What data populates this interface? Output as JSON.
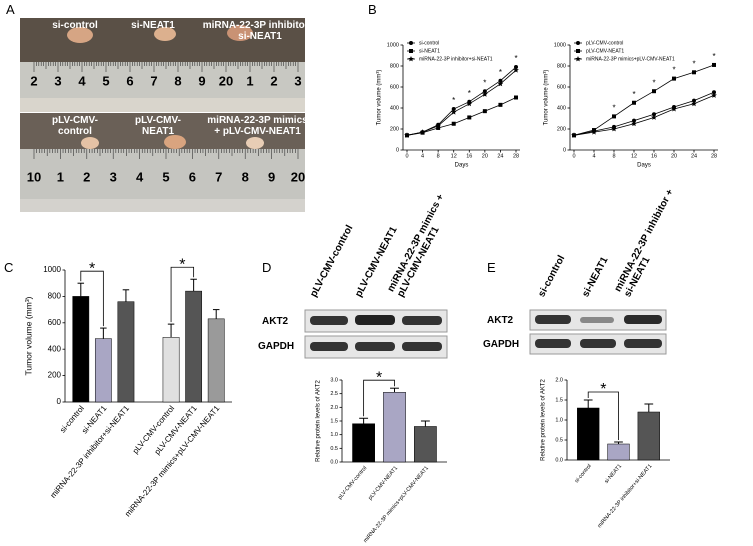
{
  "panel_labels": [
    "A",
    "B",
    "C",
    "D",
    "E"
  ],
  "panel_a": {
    "top": {
      "labels": [
        "si-control",
        "si-NEAT1",
        "miRNA-22-3P inhibitor + si-NEAT1"
      ],
      "ruler": [
        "2",
        "3",
        "4",
        "5",
        "6",
        "7",
        "8",
        "9",
        "20",
        "1",
        "2",
        "3"
      ]
    },
    "bottom": {
      "labels": [
        "pLV-CMV-control",
        "pLV-CMV-NEAT1",
        "miRNA-22-3P mimics + pLV-CMV-NEAT1"
      ],
      "ruler": [
        "10",
        "1",
        "2",
        "3",
        "4",
        "5",
        "6",
        "7",
        "8",
        "9",
        "20"
      ]
    }
  },
  "panel_d_blot": {
    "lanes": [
      "pLV-CMV-control",
      "pLV-CMV-NEAT1",
      "miRNA-22-3P mimics + pLV-CMV-NEAT1"
    ],
    "rows": [
      "AKT2",
      "GAPDH"
    ]
  },
  "panel_e_blot": {
    "lanes": [
      "si-control",
      "si-NEAT1",
      "miRNA-22-3P inhibitor + si-NEAT1"
    ],
    "rows": [
      "AKT2",
      "GAPDH"
    ]
  },
  "chart_data": [
    {
      "type": "line",
      "x_label": "Days",
      "y_label": "Tumor volume (mm³)",
      "x": [
        0,
        4,
        8,
        12,
        16,
        20,
        24,
        28
      ],
      "xlim": [
        0,
        28
      ],
      "xticks": [
        0,
        4,
        8,
        12,
        16,
        20,
        24,
        28
      ],
      "ylim": [
        0,
        1000
      ],
      "yticks": [
        0,
        200,
        400,
        600,
        800,
        1000
      ],
      "legend": "upper-left",
      "series": [
        {
          "name": "si-control",
          "color": "#000000",
          "marker": "circle",
          "values": [
            140,
            170,
            240,
            390,
            460,
            560,
            660,
            790
          ]
        },
        {
          "name": "si-NEAT1",
          "color": "#000000",
          "marker": "square",
          "values": [
            140,
            165,
            210,
            250,
            310,
            370,
            430,
            500
          ]
        },
        {
          "name": "miRNA-22-3P inhibitor+si-NEAT1",
          "color": "#000000",
          "marker": "star",
          "values": [
            140,
            170,
            230,
            360,
            440,
            530,
            630,
            760
          ]
        }
      ],
      "significance": {
        "x": [
          12,
          16,
          20,
          24,
          28
        ],
        "label": "*"
      }
    },
    {
      "type": "line",
      "x_label": "Days",
      "y_label": "Tumor volume (mm³)",
      "x": [
        0,
        4,
        8,
        12,
        16,
        20,
        24,
        28
      ],
      "xlim": [
        0,
        28
      ],
      "xticks": [
        0,
        4,
        8,
        12,
        16,
        20,
        24,
        28
      ],
      "ylim": [
        0,
        1000
      ],
      "yticks": [
        0,
        200,
        400,
        600,
        800,
        1000
      ],
      "legend": "upper-left",
      "series": [
        {
          "name": "pLV-CMV-control",
          "color": "#000000",
          "marker": "circle",
          "values": [
            140,
            180,
            220,
            280,
            340,
            410,
            470,
            550
          ]
        },
        {
          "name": "pLV-CMV-NEAT1",
          "color": "#000000",
          "marker": "square",
          "values": [
            140,
            190,
            320,
            450,
            560,
            680,
            740,
            810
          ]
        },
        {
          "name": "miRNA-22-3P mimics+pLV-CMV-NEAT1",
          "color": "#000000",
          "marker": "star",
          "values": [
            140,
            170,
            200,
            250,
            310,
            390,
            440,
            520
          ]
        }
      ],
      "significance": {
        "x": [
          8,
          12,
          16,
          20,
          24,
          28
        ],
        "label": "*"
      }
    },
    {
      "type": "bar",
      "y_label": "Tumor volume (mm³)",
      "categories": [
        "si-control",
        "si-NEAT1",
        "miRNA-22-3P inhibitor+si-NEAT1",
        "pLV-CMV-control",
        "pLV-CMV-NEAT1",
        "miRNA-22-3P mimics+pLV-CMV-NEAT1"
      ],
      "values": [
        800,
        480,
        760,
        490,
        840,
        630
      ],
      "errors": [
        100,
        80,
        90,
        100,
        90,
        70
      ],
      "colors": [
        "#000000",
        "#a9a6c4",
        "#555555",
        "#e0e0e0",
        "#555555",
        "#9a9a9a"
      ],
      "ylim": [
        0,
        1000
      ],
      "yticks": [
        0,
        200,
        400,
        600,
        800,
        1000
      ],
      "brackets": [
        {
          "bars": [
            0,
            1
          ],
          "label": "*"
        },
        {
          "bars": [
            3,
            4
          ],
          "label": "*"
        }
      ]
    },
    {
      "type": "bar",
      "y_label": "Relative protein levels of AKT2",
      "categories": [
        "pLV-CMV-control",
        "pLV-CMV-NEAT1",
        "miRNA-22-3P mimics+pLV-CMV-NEAT1"
      ],
      "values": [
        1.4,
        2.55,
        1.3
      ],
      "errors": [
        0.2,
        0.15,
        0.2
      ],
      "colors": [
        "#000000",
        "#a9a6c4",
        "#555555"
      ],
      "ylim": [
        0,
        3
      ],
      "yticks": [
        {
          "value": 0,
          "label": "0.0"
        },
        0.5,
        {
          "value": 1,
          "label": "1.0"
        },
        1.5,
        {
          "value": 2,
          "label": "2.0"
        },
        2.5,
        {
          "value": 3,
          "label": "3.0"
        }
      ],
      "brackets": [
        {
          "bars": [
            0,
            1
          ],
          "label": "*"
        }
      ]
    },
    {
      "type": "bar",
      "y_label": "Relative protein levels of AKT2",
      "categories": [
        "si-control",
        "si-NEAT1",
        "miRNA-22-3P inhibitor+si-NEAT1"
      ],
      "values": [
        1.3,
        0.4,
        1.2
      ],
      "errors": [
        0.2,
        0.05,
        0.2
      ],
      "colors": [
        "#000000",
        "#a9a6c4",
        "#555555"
      ],
      "ylim": [
        0,
        2
      ],
      "yticks": [
        {
          "value": 0,
          "label": "0.0"
        },
        0.5,
        {
          "value": 1,
          "label": "1.0"
        },
        1.5,
        {
          "value": 2,
          "label": "2.0"
        }
      ],
      "brackets": [
        {
          "bars": [
            0,
            1
          ],
          "label": "*"
        }
      ]
    }
  ]
}
